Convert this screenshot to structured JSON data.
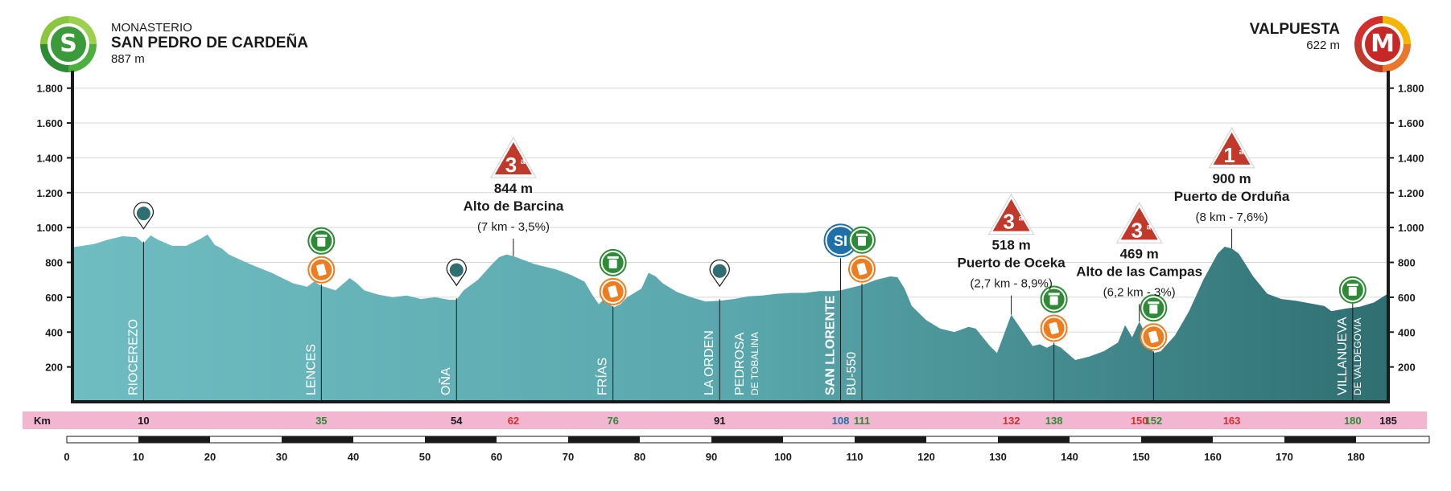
{
  "start": {
    "line1": "MONASTERIO",
    "line2": "SAN PEDRO DE CARDEÑA",
    "elevation": "887 m",
    "badge": "S"
  },
  "finish": {
    "line1": "VALPUESTA",
    "elevation": "622 m",
    "badge": "M"
  },
  "colors": {
    "profile_light": "#6fbcc1",
    "profile_dark": "#2f6f72",
    "km_bar": "#f2b6d0",
    "green": "#2e8b35",
    "orange": "#ee7d1f",
    "red_climb": "#c0392b",
    "blue_si": "#1f6fa8"
  },
  "chart_data": {
    "type": "area",
    "title": "",
    "xlabel": "",
    "ylabel": "",
    "ylim": [
      0,
      1900
    ],
    "y_ticks": [
      "200",
      "400",
      "600",
      "800",
      "1.000",
      "1.200",
      "1.400",
      "1.600",
      "1.800"
    ],
    "y_tick_values": [
      200,
      400,
      600,
      800,
      1000,
      1200,
      1400,
      1600,
      1800
    ],
    "xlim": [
      0,
      185
    ],
    "x_ticks": [
      0,
      10,
      20,
      30,
      40,
      50,
      60,
      70,
      80,
      90,
      100,
      110,
      120,
      130,
      140,
      150,
      160,
      170,
      180
    ],
    "profile": [
      [
        0,
        887
      ],
      [
        3,
        905
      ],
      [
        5,
        930
      ],
      [
        7,
        950
      ],
      [
        9,
        945
      ],
      [
        10,
        910
      ],
      [
        11,
        955
      ],
      [
        12,
        930
      ],
      [
        14,
        895
      ],
      [
        16,
        895
      ],
      [
        18,
        935
      ],
      [
        19,
        960
      ],
      [
        20,
        900
      ],
      [
        21,
        880
      ],
      [
        22,
        845
      ],
      [
        25,
        790
      ],
      [
        28,
        740
      ],
      [
        31,
        680
      ],
      [
        33,
        660
      ],
      [
        34,
        690
      ],
      [
        35,
        665
      ],
      [
        37,
        640
      ],
      [
        38,
        675
      ],
      [
        39,
        710
      ],
      [
        40,
        680
      ],
      [
        41,
        640
      ],
      [
        43,
        615
      ],
      [
        45,
        600
      ],
      [
        47,
        610
      ],
      [
        49,
        590
      ],
      [
        51,
        600
      ],
      [
        53,
        585
      ],
      [
        54,
        585
      ],
      [
        55,
        640
      ],
      [
        57,
        700
      ],
      [
        59,
        790
      ],
      [
        60,
        830
      ],
      [
        61,
        845
      ],
      [
        62,
        836
      ],
      [
        65,
        790
      ],
      [
        68,
        760
      ],
      [
        70,
        730
      ],
      [
        72,
        690
      ],
      [
        73,
        620
      ],
      [
        74,
        560
      ],
      [
        75,
        600
      ],
      [
        76,
        540
      ],
      [
        77,
        560
      ],
      [
        78,
        600
      ],
      [
        80,
        650
      ],
      [
        81,
        740
      ],
      [
        82,
        720
      ],
      [
        83,
        680
      ],
      [
        85,
        630
      ],
      [
        87,
        600
      ],
      [
        89,
        575
      ],
      [
        91,
        580
      ],
      [
        93,
        590
      ],
      [
        95,
        605
      ],
      [
        97,
        610
      ],
      [
        99,
        620
      ],
      [
        101,
        625
      ],
      [
        103,
        625
      ],
      [
        105,
        635
      ],
      [
        107,
        635
      ],
      [
        108,
        640
      ],
      [
        109,
        650
      ],
      [
        111,
        670
      ],
      [
        113,
        700
      ],
      [
        115,
        720
      ],
      [
        116,
        715
      ],
      [
        117,
        650
      ],
      [
        118,
        550
      ],
      [
        120,
        470
      ],
      [
        122,
        420
      ],
      [
        124,
        400
      ],
      [
        126,
        430
      ],
      [
        127,
        420
      ],
      [
        129,
        320
      ],
      [
        130,
        280
      ],
      [
        131,
        390
      ],
      [
        132,
        500
      ],
      [
        134,
        380
      ],
      [
        135,
        320
      ],
      [
        136,
        330
      ],
      [
        137,
        310
      ],
      [
        138,
        330
      ],
      [
        139,
        310
      ],
      [
        141,
        240
      ],
      [
        143,
        260
      ],
      [
        145,
        290
      ],
      [
        147,
        340
      ],
      [
        148,
        440
      ],
      [
        149,
        370
      ],
      [
        150,
        460
      ],
      [
        151,
        380
      ],
      [
        152,
        280
      ],
      [
        153,
        290
      ],
      [
        155,
        380
      ],
      [
        157,
        520
      ],
      [
        159,
        700
      ],
      [
        161,
        850
      ],
      [
        162,
        890
      ],
      [
        163,
        880
      ],
      [
        164,
        850
      ],
      [
        166,
        720
      ],
      [
        168,
        620
      ],
      [
        170,
        590
      ],
      [
        172,
        580
      ],
      [
        174,
        565
      ],
      [
        176,
        550
      ],
      [
        177,
        520
      ],
      [
        179,
        535
      ],
      [
        181,
        545
      ],
      [
        183,
        570
      ],
      [
        185,
        622
      ]
    ],
    "localities": [
      {
        "km": 10,
        "name": "RIOCEREZO",
        "icon": "pin"
      },
      {
        "km": 35,
        "name": "LENCES",
        "icon": "feed"
      },
      {
        "km": 54,
        "name": "OÑA",
        "icon": "pin"
      },
      {
        "km": 76,
        "name": "FRÍAS",
        "icon": "feed"
      },
      {
        "km": 91,
        "name": "LA ORDEN",
        "icon": "pin"
      },
      {
        "km": 91,
        "name": "PEDROSA",
        "sub": "DE TOBALINA"
      },
      {
        "km": 108,
        "name": "SAN LLORENTE",
        "icon": "si",
        "bold": true
      },
      {
        "km": 111,
        "name": "BU-550",
        "icon": "feed"
      },
      {
        "km": 138,
        "icon": "feed"
      },
      {
        "km": 152,
        "icon": "feed"
      },
      {
        "km": 180,
        "name": "VILLANUEVA",
        "sub": "DE VALDEGOVIA",
        "icon": "waste"
      }
    ],
    "climbs": [
      {
        "km": 62,
        "cat": "3",
        "sup": "a",
        "alt": "844 m",
        "name": "Alto de Barcina",
        "detail": "(7 km - 3,5%)"
      },
      {
        "km": 132,
        "cat": "3",
        "sup": "a",
        "alt": "518 m",
        "name": "Puerto de Oceka",
        "detail": "(2,7 km - 8,9%)"
      },
      {
        "km": 150,
        "cat": "3",
        "sup": "a",
        "alt": "469 m",
        "name": "Alto de las Campas",
        "detail": "(6,2 km - 3%)"
      },
      {
        "km": 163,
        "cat": "1",
        "sup": "a",
        "alt": "900 m",
        "name": "Puerto de Orduña",
        "detail": "(8 km - 7,6%)"
      }
    ],
    "icon_si_label": "SI",
    "km_bar": {
      "label": "Km",
      "marks": [
        {
          "km": 10,
          "text": "10",
          "color": "#1a1a1a"
        },
        {
          "km": 35,
          "text": "35",
          "color": "#2e8b35"
        },
        {
          "km": 54,
          "text": "54",
          "color": "#1a1a1a"
        },
        {
          "km": 62,
          "text": "62",
          "color": "#d32f2f"
        },
        {
          "km": 76,
          "text": "76",
          "color": "#2e8b35"
        },
        {
          "km": 91,
          "text": "91",
          "color": "#1a1a1a"
        },
        {
          "km": 108,
          "text": "108",
          "color": "#1f6fa8"
        },
        {
          "km": 111,
          "text": "111",
          "color": "#2e8b35"
        },
        {
          "km": 132,
          "text": "132",
          "color": "#d32f2f"
        },
        {
          "km": 138,
          "text": "138",
          "color": "#2e8b35"
        },
        {
          "km": 150,
          "text": "150",
          "color": "#d32f2f"
        },
        {
          "km": 152,
          "text": "152",
          "color": "#2e8b35"
        },
        {
          "km": 163,
          "text": "163",
          "color": "#d32f2f"
        },
        {
          "km": 180,
          "text": "180",
          "color": "#2e8b35"
        },
        {
          "km": 185,
          "text": "185",
          "color": "#1a1a1a"
        }
      ]
    }
  }
}
